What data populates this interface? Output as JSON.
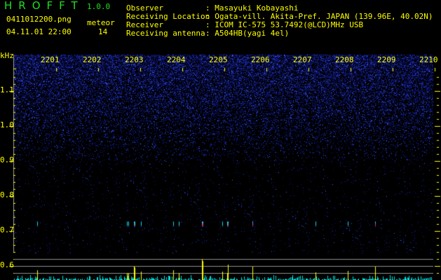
{
  "header": {
    "app_title": "HROFFT",
    "version": "1.0.0",
    "filename": "0411012200.png",
    "datetime": "04.11.01 22:00",
    "meteor_label": "meteor",
    "meteor_count": "14",
    "info": [
      {
        "label": "Observer",
        "value": ": Masayuki Kobayashi"
      },
      {
        "label": "Receiving Location",
        "value": ": Ogata-vill. Akita-Pref. JAPAN (139.96E, 40.02N)"
      },
      {
        "label": "Receiver",
        "value": ": ICOM IC-575 53.7492(@LCD)MHz USB"
      },
      {
        "label": "Receiving antenna",
        "value": ": A504HB(yagi 4el)"
      }
    ]
  },
  "chart_data": {
    "type": "heatmap",
    "ylabel": "kHz",
    "x_ticks": [
      "2201",
      "2202",
      "2203",
      "2204",
      "2205",
      "2206",
      "2207",
      "2208",
      "2209",
      "2210"
    ],
    "y_ticks": [
      "1.1",
      "1.0",
      "0.9",
      "0.8",
      "0.7",
      "0.6"
    ],
    "ylim": [
      0.56,
      1.2
    ],
    "xlim_minutes": [
      0,
      10
    ],
    "echo_band_khz": 0.72,
    "meteor_echoes": [
      {
        "t": 0.55,
        "strength": 0.47
      },
      {
        "t": 2.68,
        "strength": 0.33
      },
      {
        "t": 2.72,
        "strength": 0.33
      },
      {
        "t": 2.85,
        "strength": 0.67
      },
      {
        "t": 2.87,
        "strength": 0.6
      },
      {
        "t": 3.02,
        "strength": 0.4
      },
      {
        "t": 3.78,
        "strength": 0.47
      },
      {
        "t": 3.92,
        "strength": 0.33
      },
      {
        "t": 4.47,
        "strength": 1.0
      },
      {
        "t": 4.48,
        "strength": 0.9
      },
      {
        "t": 4.95,
        "strength": 0.4
      },
      {
        "t": 5.07,
        "strength": 0.33
      },
      {
        "t": 5.08,
        "strength": 0.73
      },
      {
        "t": 5.67,
        "strength": 0.63
      },
      {
        "t": 7.17,
        "strength": 0.37
      },
      {
        "t": 7.93,
        "strength": 0.43
      },
      {
        "t": 8.58,
        "strength": 0.63
      }
    ],
    "colors": {
      "echo": "#ffff00",
      "noise_bar": "#00e0e0",
      "axis": "#ffff00",
      "grid": "#909090"
    }
  }
}
